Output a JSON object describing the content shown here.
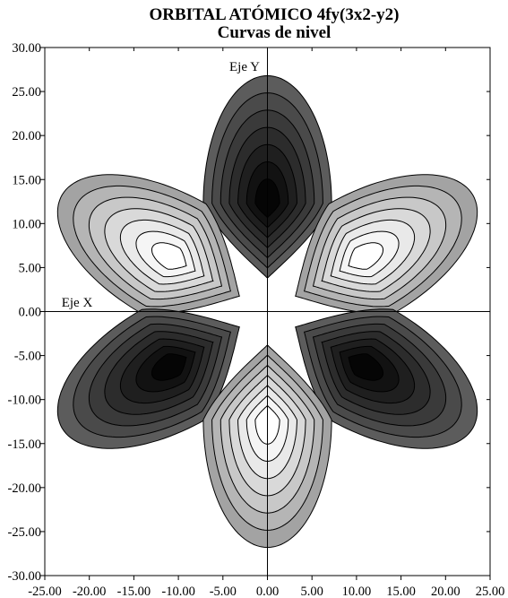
{
  "chart_data": {
    "type": "contour",
    "title": "ORBITAL ATÓMICO 4fy(3x2-y2)",
    "subtitle": "Curvas de nivel",
    "x_axis_label": "Eje X",
    "y_axis_label": "Eje Y",
    "xlim": [
      -25,
      25
    ],
    "ylim": [
      -30,
      30
    ],
    "x_ticks": [
      -25,
      -20,
      -15,
      -10,
      -5,
      0,
      5,
      10,
      15,
      20,
      25
    ],
    "x_tick_labels": [
      "-25.00",
      "-20.00",
      "-15.00",
      "-10.00",
      "-5.00",
      "0.00",
      "5.00",
      "10.00",
      "15.00",
      "20.00",
      "25.00"
    ],
    "y_ticks": [
      30,
      25,
      20,
      15,
      10,
      5,
      0,
      -5,
      -10,
      -15,
      -20,
      -25,
      -30
    ],
    "y_tick_labels": [
      "30.00",
      "25.00",
      "20.00",
      "15.00",
      "10.00",
      "5.00",
      "0.00",
      "-5.00",
      "-10.00",
      "-15.00",
      "-20.00",
      "-25.00",
      "-30.00"
    ],
    "grid": false,
    "lobes": [
      {
        "sign": "negative",
        "center": [
          0,
          12.3
        ],
        "angle_deg": 90
      },
      {
        "sign": "positive",
        "center": [
          -10.5,
          6
        ],
        "angle_deg": 150
      },
      {
        "sign": "positive",
        "center": [
          10.5,
          6
        ],
        "angle_deg": 30
      },
      {
        "sign": "negative",
        "center": [
          -10.5,
          -6
        ],
        "angle_deg": 210
      },
      {
        "sign": "negative",
        "center": [
          10.5,
          -6
        ],
        "angle_deg": 330
      },
      {
        "sign": "positive",
        "center": [
          0,
          -12.3
        ],
        "angle_deg": 270
      }
    ],
    "contour_fills": {
      "positive": [
        "#a3a3a3",
        "#b5b5b5",
        "#c8c8c8",
        "#d9d9d9",
        "#e9e9e9",
        "#f5f5f5",
        "#ffffff"
      ],
      "negative": [
        "#5c5c5c",
        "#4a4a4a",
        "#3a3a3a",
        "#2c2c2c",
        "#1f1f1f",
        "#121212",
        "#050505"
      ]
    }
  }
}
